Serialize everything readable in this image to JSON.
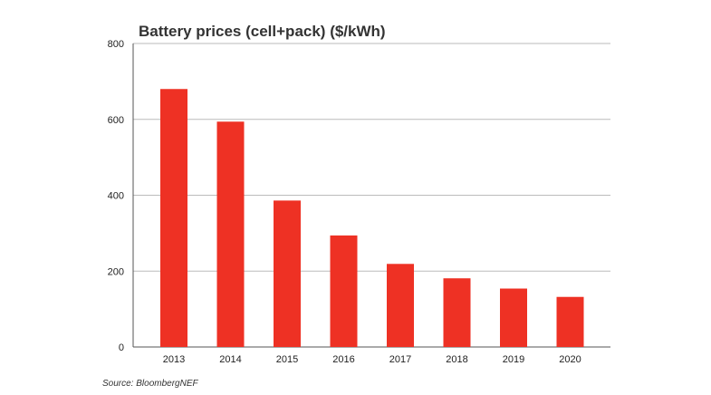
{
  "chart_data": {
    "type": "bar",
    "title": "Battery prices (cell+pack) ($/kWh)",
    "categories": [
      "2013",
      "2014",
      "2015",
      "2016",
      "2017",
      "2018",
      "2019",
      "2020"
    ],
    "values": [
      680,
      594,
      386,
      294,
      219,
      181,
      154,
      132
    ],
    "ylim": [
      0,
      800
    ],
    "yticks": [
      "0",
      "200",
      "400",
      "600",
      "800"
    ],
    "xlabel": "",
    "ylabel": "",
    "grid": "horizontal",
    "bar_color": "#ee3124",
    "grid_color": "#bbbbbb",
    "axis_color": "#555555",
    "source": "Source: BloombergNEF"
  }
}
